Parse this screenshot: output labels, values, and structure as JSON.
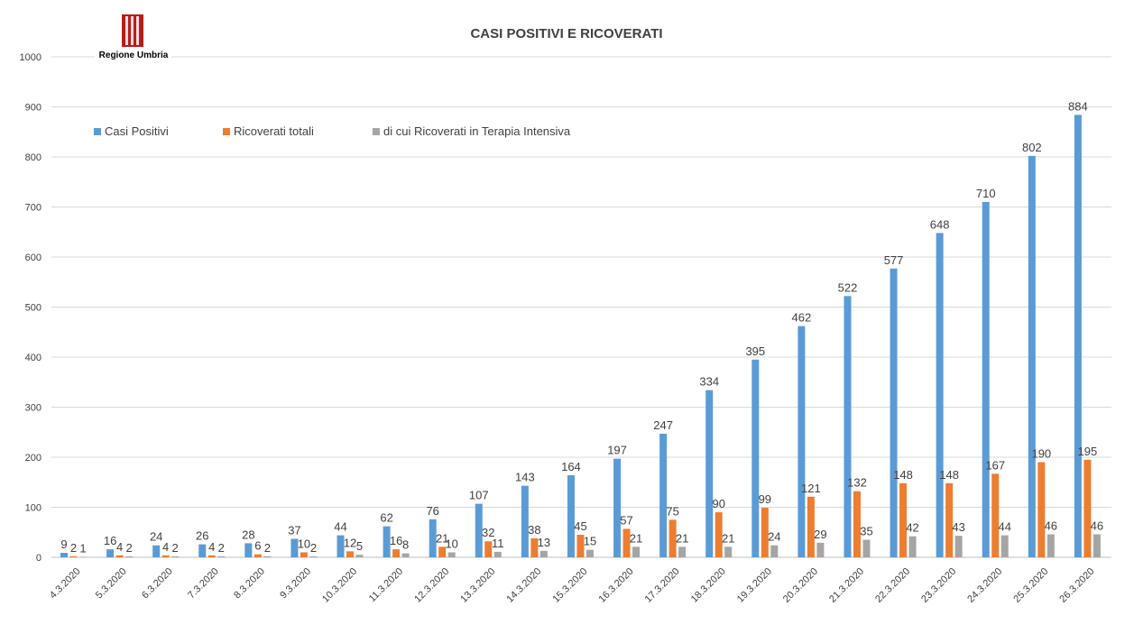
{
  "logo": {
    "text": "Regione Umbria"
  },
  "chart_data": {
    "type": "bar",
    "title": "CASI POSITIVI E RICOVERATI",
    "categories": [
      "4.3.2020",
      "5.3.2020",
      "6.3.2020",
      "7.3.2020",
      "8.3.2020",
      "9.3.2020",
      "10.3.2020",
      "11.3.2020",
      "12.3.2020",
      "13.3.2020",
      "14.3.2020",
      "15.3.2020",
      "16.3.2020",
      "17.3.2020",
      "18.3.2020",
      "19.3.2020",
      "20.3.2020",
      "21.3.2020",
      "22.3.2020",
      "23.3.2020",
      "24.3.2020",
      "25.3.2020",
      "26.3.2020"
    ],
    "series": [
      {
        "name": "Casi Positivi",
        "color": "#5b9bd5",
        "values": [
          9,
          16,
          24,
          26,
          28,
          37,
          44,
          62,
          76,
          107,
          143,
          164,
          197,
          247,
          334,
          395,
          462,
          522,
          577,
          648,
          710,
          802,
          884
        ]
      },
      {
        "name": "Ricoverati totali",
        "color": "#ed7d31",
        "values": [
          2,
          4,
          4,
          4,
          6,
          10,
          12,
          16,
          21,
          32,
          38,
          45,
          57,
          75,
          90,
          99,
          121,
          132,
          148,
          148,
          167,
          190,
          195
        ]
      },
      {
        "name": "di cui Ricoverati in Terapia Intensiva",
        "color": "#a5a5a5",
        "values": [
          1,
          2,
          2,
          2,
          2,
          2,
          5,
          8,
          10,
          11,
          13,
          15,
          21,
          21,
          21,
          24,
          29,
          35,
          42,
          43,
          44,
          46,
          46
        ]
      }
    ],
    "ylim": [
      0,
      1000
    ],
    "yticks": [
      0,
      100,
      200,
      300,
      400,
      500,
      600,
      700,
      800,
      900,
      1000
    ],
    "grid": true,
    "legend_position": "top-left",
    "data_labels": true
  }
}
